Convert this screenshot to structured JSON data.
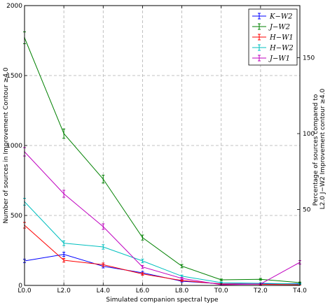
{
  "chart_data": {
    "type": "line",
    "categories": [
      "L0.0",
      "L2.0",
      "L4.0",
      "L6.0",
      "L8.0",
      "T0.0",
      "T2.0",
      "T4.0"
    ],
    "xlabel": "Simulated companion spectral type",
    "ylabel": "Number of sources in Improvement Contour ≥4.0",
    "y2label_lines": [
      "Percentage of sources compared to",
      "L2.0  J−W2 Improvement contour ≥4.0"
    ],
    "ylim": [
      0,
      2000
    ],
    "yticks": [
      0,
      500,
      1000,
      1500,
      2000
    ],
    "y2ticks": [
      {
        "value": 50,
        "label": "50"
      },
      {
        "value": 100,
        "label": "100"
      },
      {
        "value": 150,
        "label": "150"
      }
    ],
    "y2_reference_count": 1085,
    "grid": true,
    "legend_position": "top-right",
    "series": [
      {
        "name": "K−W2",
        "color": "#0000ff",
        "values": [
          175,
          222,
          137,
          90,
          30,
          12,
          10,
          13
        ],
        "errors": [
          12,
          15,
          12,
          10,
          6,
          4,
          3,
          4
        ]
      },
      {
        "name": "J−W2",
        "color": "#008000",
        "values": [
          1770,
          1085,
          760,
          342,
          138,
          40,
          44,
          20
        ],
        "errors": [
          42,
          33,
          28,
          18,
          12,
          6,
          6,
          4
        ]
      },
      {
        "name": "H−W1",
        "color": "#ff0000",
        "values": [
          430,
          180,
          148,
          82,
          35,
          10,
          8,
          5
        ],
        "errors": [
          20,
          13,
          12,
          9,
          6,
          3,
          3,
          2
        ]
      },
      {
        "name": "H−W2",
        "color": "#00bfbf",
        "values": [
          598,
          302,
          275,
          175,
          66,
          20,
          15,
          10
        ],
        "errors": [
          24,
          17,
          16,
          13,
          8,
          4,
          4,
          3
        ]
      },
      {
        "name": "J−W1",
        "color": "#bf00bf",
        "values": [
          955,
          655,
          420,
          132,
          50,
          5,
          10,
          165
        ],
        "errors": [
          30,
          25,
          20,
          11,
          7,
          2,
          3,
          12
        ]
      }
    ]
  }
}
